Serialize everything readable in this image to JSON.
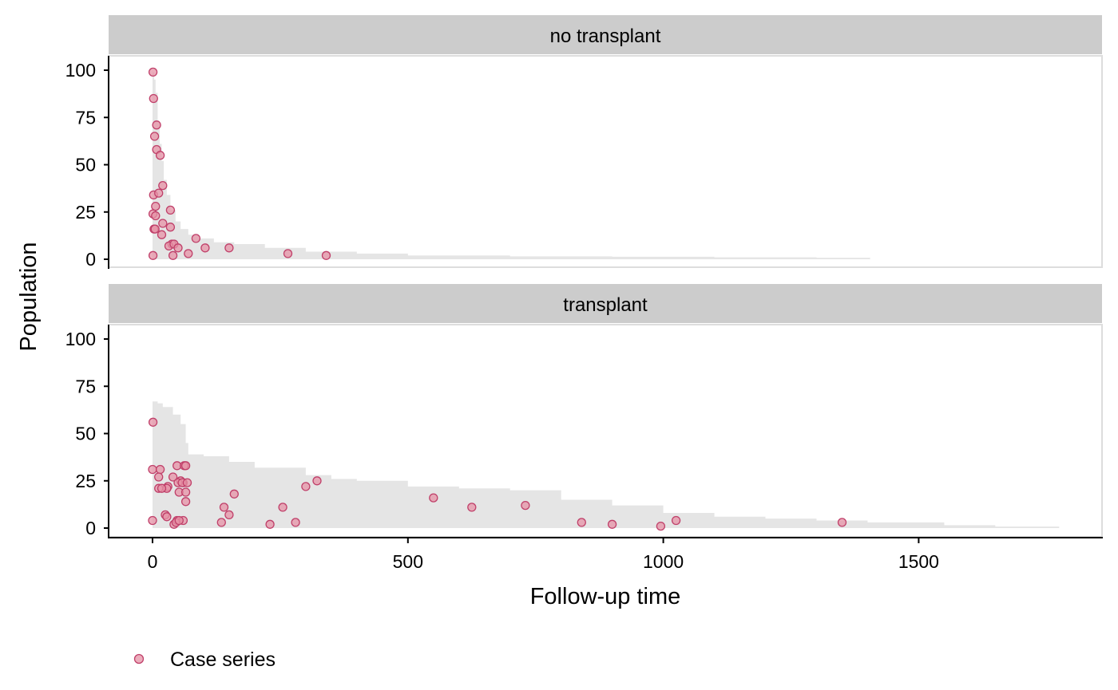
{
  "chart_data": {
    "type": "scatter",
    "xlabel": "Follow-up time",
    "ylabel": "Population",
    "xlim": [
      -90,
      1870
    ],
    "ylim": [
      -5,
      108
    ],
    "x_ticks": [
      0,
      500,
      1000,
      1500
    ],
    "y_ticks": [
      0,
      25,
      50,
      75,
      100
    ],
    "legend": {
      "position": "bottom-left",
      "label": "Case series"
    },
    "colors": {
      "point_fill": "#e592a6",
      "point_stroke": "#c0406a",
      "risk_area": "#e5e5e5",
      "strip": "#cccccc"
    },
    "panels": [
      {
        "label": "no transplant",
        "risk_set": [
          [
            0,
            99
          ],
          [
            3,
            95
          ],
          [
            6,
            88
          ],
          [
            10,
            72
          ],
          [
            14,
            61
          ],
          [
            18,
            52
          ],
          [
            22,
            42
          ],
          [
            28,
            34
          ],
          [
            35,
            26
          ],
          [
            45,
            20
          ],
          [
            55,
            16
          ],
          [
            70,
            13
          ],
          [
            90,
            11
          ],
          [
            120,
            9
          ],
          [
            160,
            8
          ],
          [
            220,
            6
          ],
          [
            300,
            4
          ],
          [
            400,
            3
          ],
          [
            500,
            2
          ],
          [
            700,
            1.5
          ],
          [
            900,
            1.3
          ],
          [
            1100,
            1
          ],
          [
            1300,
            0.8
          ],
          [
            1405,
            0.5
          ]
        ],
        "points": [
          [
            1,
            99
          ],
          [
            2,
            85
          ],
          [
            8,
            71
          ],
          [
            4,
            65
          ],
          [
            8,
            58
          ],
          [
            15,
            55
          ],
          [
            2,
            34
          ],
          [
            12,
            35
          ],
          [
            20,
            39
          ],
          [
            1,
            24
          ],
          [
            6,
            23
          ],
          [
            6,
            28
          ],
          [
            35,
            26
          ],
          [
            3,
            16
          ],
          [
            5,
            16
          ],
          [
            20,
            19
          ],
          [
            35,
            17
          ],
          [
            18,
            13
          ],
          [
            38,
            8
          ],
          [
            32,
            7
          ],
          [
            42,
            8
          ],
          [
            50,
            6
          ],
          [
            1,
            2
          ],
          [
            40,
            2
          ],
          [
            70,
            3
          ],
          [
            85,
            11
          ],
          [
            103,
            6
          ],
          [
            150,
            6
          ],
          [
            265,
            3
          ],
          [
            340,
            2
          ]
        ]
      },
      {
        "label": "transplant",
        "risk_set": [
          [
            0,
            67
          ],
          [
            10,
            66
          ],
          [
            20,
            64
          ],
          [
            40,
            60
          ],
          [
            55,
            55
          ],
          [
            65,
            45
          ],
          [
            70,
            39
          ],
          [
            100,
            38
          ],
          [
            150,
            35
          ],
          [
            200,
            32
          ],
          [
            300,
            28
          ],
          [
            350,
            26
          ],
          [
            400,
            25
          ],
          [
            500,
            22
          ],
          [
            600,
            21
          ],
          [
            700,
            20
          ],
          [
            800,
            15
          ],
          [
            900,
            12
          ],
          [
            1000,
            8
          ],
          [
            1100,
            6
          ],
          [
            1200,
            5
          ],
          [
            1300,
            4
          ],
          [
            1400,
            3
          ],
          [
            1550,
            1.5
          ],
          [
            1650,
            0.8
          ],
          [
            1775,
            0.5
          ]
        ],
        "points": [
          [
            1,
            56
          ],
          [
            0,
            31
          ],
          [
            15,
            31
          ],
          [
            12,
            27
          ],
          [
            40,
            27
          ],
          [
            48,
            33
          ],
          [
            62,
            33
          ],
          [
            65,
            33
          ],
          [
            55,
            25
          ],
          [
            60,
            24
          ],
          [
            50,
            24
          ],
          [
            58,
            24
          ],
          [
            68,
            24
          ],
          [
            30,
            22
          ],
          [
            28,
            21
          ],
          [
            12,
            21
          ],
          [
            18,
            21
          ],
          [
            52,
            19
          ],
          [
            65,
            19
          ],
          [
            65,
            14
          ],
          [
            25,
            7
          ],
          [
            28,
            6
          ],
          [
            42,
            2
          ],
          [
            48,
            4
          ],
          [
            46,
            3
          ],
          [
            60,
            4
          ],
          [
            52,
            4
          ],
          [
            0,
            4
          ],
          [
            135,
            3
          ],
          [
            140,
            11
          ],
          [
            150,
            7
          ],
          [
            160,
            18
          ],
          [
            230,
            2
          ],
          [
            255,
            11
          ],
          [
            280,
            3
          ],
          [
            300,
            22
          ],
          [
            322,
            25
          ],
          [
            550,
            16
          ],
          [
            625,
            11
          ],
          [
            730,
            12
          ],
          [
            840,
            3
          ],
          [
            900,
            2
          ],
          [
            995,
            1
          ],
          [
            1025,
            4
          ],
          [
            1350,
            3
          ]
        ]
      }
    ]
  }
}
